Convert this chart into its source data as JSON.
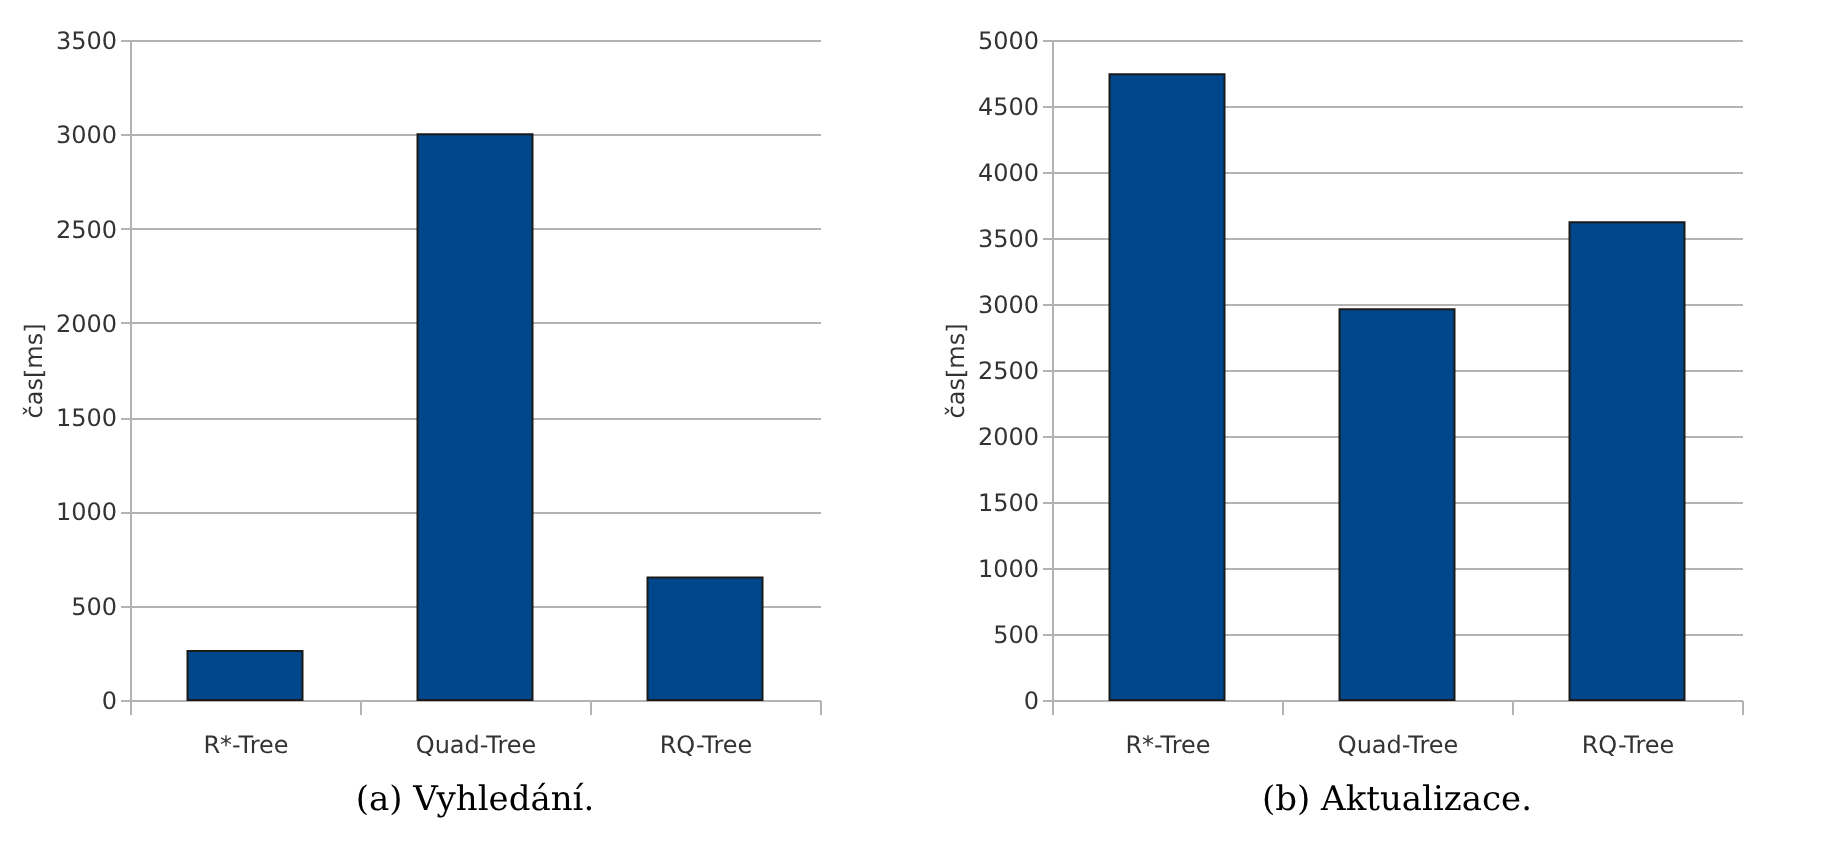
{
  "chart_data": [
    {
      "type": "bar",
      "title": "(a) Vyhledání.",
      "ylabel": "čas[ms]",
      "categories": [
        "R*-Tree",
        "Quad-Tree",
        "RQ-Tree"
      ],
      "values": [
        260,
        3000,
        650
      ],
      "color": "#00468b",
      "ylim": [
        0,
        3500
      ],
      "yticks": [
        0,
        500,
        1000,
        1500,
        2000,
        2500,
        3000,
        3500
      ],
      "grid": "y"
    },
    {
      "type": "bar",
      "title": "(b) Aktualizace.",
      "ylabel": "čas[ms]",
      "categories": [
        "R*-Tree",
        "Quad-Tree",
        "RQ-Tree"
      ],
      "values": [
        4740,
        2960,
        3620
      ],
      "color": "#00468b",
      "ylim": [
        0,
        5000
      ],
      "yticks": [
        0,
        500,
        1000,
        1500,
        2000,
        2500,
        3000,
        3500,
        4000,
        4500,
        5000
      ],
      "grid": "y"
    }
  ]
}
